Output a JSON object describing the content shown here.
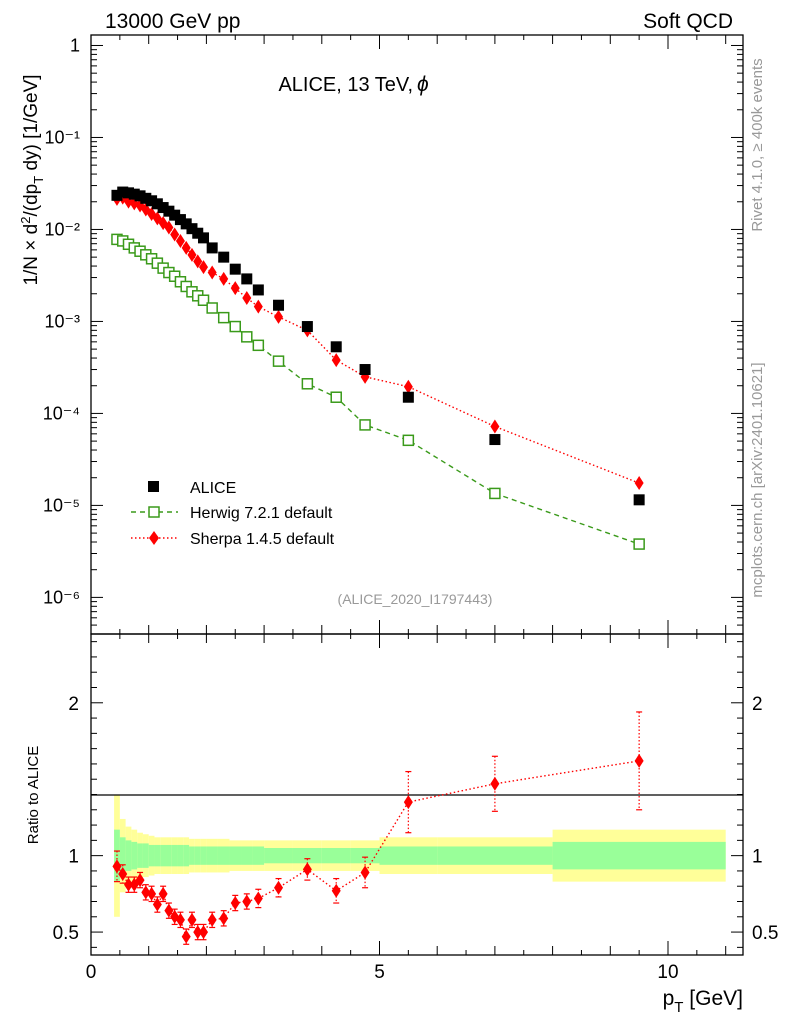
{
  "header": {
    "left": "13000 GeV pp",
    "right": "Soft QCD"
  },
  "side_text": {
    "rivet": "Rivet 4.1.0, ≥ 400k events",
    "source": "mcplots.cern.ch [arXiv:2401.10621]"
  },
  "colors": {
    "alice": "#000000",
    "herwig": "#3a9a1a",
    "sherpa": "#ff0000",
    "band_inner": "#99ff99",
    "band_outer": "#ffff99",
    "label_grey": "#999999"
  },
  "chart_data": [
    {
      "type": "scatter",
      "title": "ALICE, 13 TeV,",
      "title_symbol": "ϕ",
      "ylabel": "1/N × d²/(dp_T dy) [1/GeV]",
      "yscale": "log",
      "ylim": [
        4e-07,
        1.3
      ],
      "xlim": [
        0,
        11.3
      ],
      "ytick_labels": [
        "10⁻⁶",
        "10⁻⁵",
        "10⁻⁴",
        "10⁻³",
        "10⁻²",
        "10⁻¹",
        "1"
      ],
      "analysis_label": "(ALICE_2020_I1797443)",
      "x": [
        0.45,
        0.55,
        0.65,
        0.75,
        0.85,
        0.95,
        1.05,
        1.15,
        1.25,
        1.35,
        1.45,
        1.55,
        1.65,
        1.75,
        1.85,
        1.95,
        2.1,
        2.3,
        2.5,
        2.7,
        2.9,
        3.25,
        3.75,
        4.25,
        4.75,
        5.5,
        7.0,
        9.5
      ],
      "series": [
        {
          "name": "ALICE",
          "marker": "square",
          "values": [
            0.0235,
            0.0255,
            0.025,
            0.0242,
            0.0232,
            0.0218,
            0.0205,
            0.019,
            0.0173,
            0.0158,
            0.0143,
            0.0128,
            0.0115,
            0.0102,
            0.0091,
            0.0081,
            0.0063,
            0.005,
            0.0037,
            0.0029,
            0.0022,
            0.0015,
            0.00088,
            0.00053,
            0.0003,
            0.00015,
            5.2e-05,
            1.15e-05
          ]
        },
        {
          "name": "Herwig 7.2.1 default",
          "marker": "open-square",
          "line": "dashed",
          "values": [
            0.0078,
            0.0075,
            0.0069,
            0.0063,
            0.0058,
            0.0053,
            0.0048,
            0.0043,
            0.0038,
            0.0034,
            0.0031,
            0.0027,
            0.0024,
            0.0021,
            0.0019,
            0.0017,
            0.0014,
            0.0011,
            0.00088,
            0.00068,
            0.00055,
            0.00037,
            0.00021,
            0.00015,
            7.5e-05,
            5.1e-05,
            1.35e-05,
            3.8e-06
          ]
        },
        {
          "name": "Sherpa 1.4.5 default",
          "marker": "diamond",
          "line": "dotted",
          "values": [
            0.0215,
            0.0222,
            0.0201,
            0.0192,
            0.0182,
            0.0165,
            0.0147,
            0.0132,
            0.0117,
            0.0105,
            0.0088,
            0.0075,
            0.0063,
            0.0053,
            0.0045,
            0.0039,
            0.0034,
            0.0029,
            0.0023,
            0.0018,
            0.00145,
            0.00112,
            0.0008,
            0.00038,
            0.00025,
            0.000195,
            7.2e-05,
            1.75e-05
          ]
        }
      ]
    },
    {
      "type": "scatter",
      "title": "",
      "xlabel": "p_T [GeV]",
      "ylabel": "Ratio to ALICE",
      "xlim": [
        0,
        11.3
      ],
      "ylim": [
        0.35,
        2.45
      ],
      "xtick_labels": [
        "0",
        "5",
        "10"
      ],
      "ytick_labels": [
        "0.5",
        "1",
        "2"
      ],
      "bands": {
        "edges": [
          0.4,
          0.5,
          0.6,
          0.7,
          0.8,
          0.9,
          1.0,
          1.1,
          1.2,
          1.3,
          1.4,
          1.5,
          1.6,
          1.7,
          1.8,
          1.9,
          2.0,
          2.2,
          2.4,
          2.6,
          2.8,
          3.0,
          3.5,
          4.0,
          4.5,
          5.0,
          6.0,
          8.0,
          11.0
        ],
        "inner": [
          0.17,
          0.12,
          0.1,
          0.09,
          0.08,
          0.08,
          0.07,
          0.07,
          0.07,
          0.07,
          0.07,
          0.07,
          0.07,
          0.06,
          0.06,
          0.06,
          0.06,
          0.06,
          0.06,
          0.06,
          0.06,
          0.05,
          0.05,
          0.05,
          0.05,
          0.06,
          0.06,
          0.09
        ],
        "outer": [
          0.4,
          0.24,
          0.19,
          0.17,
          0.15,
          0.14,
          0.13,
          0.12,
          0.12,
          0.12,
          0.12,
          0.12,
          0.12,
          0.11,
          0.11,
          0.11,
          0.11,
          0.11,
          0.1,
          0.1,
          0.1,
          0.1,
          0.1,
          0.1,
          0.1,
          0.12,
          0.12,
          0.17
        ]
      },
      "series": [
        {
          "name": "Sherpa 1.4.5 default",
          "marker": "diamond",
          "line": "dotted",
          "x": [
            0.45,
            0.55,
            0.65,
            0.75,
            0.85,
            0.95,
            1.05,
            1.15,
            1.25,
            1.35,
            1.45,
            1.55,
            1.65,
            1.75,
            1.85,
            1.95,
            2.1,
            2.3,
            2.5,
            2.7,
            2.9,
            3.25,
            3.75,
            4.25,
            4.75,
            5.5,
            7.0,
            9.5
          ],
          "values": [
            0.93,
            0.88,
            0.81,
            0.81,
            0.84,
            0.76,
            0.75,
            0.68,
            0.75,
            0.64,
            0.6,
            0.58,
            0.47,
            0.58,
            0.5,
            0.5,
            0.58,
            0.59,
            0.69,
            0.7,
            0.72,
            0.79,
            0.91,
            0.77,
            0.89,
            1.35,
            1.47,
            1.62
          ],
          "errors": [
            0.1,
            0.06,
            0.05,
            0.05,
            0.05,
            0.05,
            0.05,
            0.05,
            0.05,
            0.05,
            0.05,
            0.05,
            0.05,
            0.05,
            0.05,
            0.05,
            0.05,
            0.05,
            0.05,
            0.05,
            0.06,
            0.06,
            0.07,
            0.08,
            0.1,
            0.2,
            0.18,
            0.32
          ]
        }
      ]
    }
  ]
}
